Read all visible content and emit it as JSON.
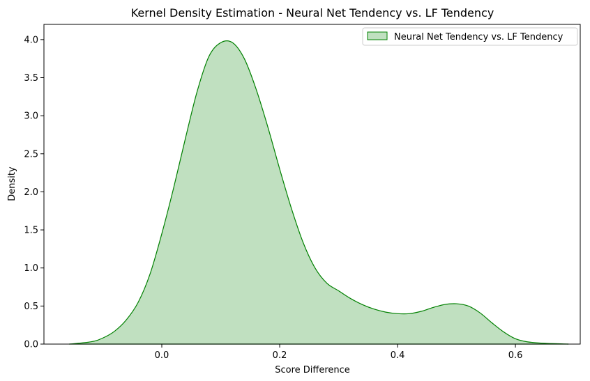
{
  "chart_data": {
    "type": "area",
    "title": "Kernel Density Estimation - Neural Net Tendency vs. LF Tendency",
    "xlabel": "Score Difference",
    "ylabel": "Density",
    "xlim": [
      -0.2,
      0.71
    ],
    "ylim": [
      0,
      4.2
    ],
    "xticks": [
      0.0,
      0.2,
      0.4,
      0.6
    ],
    "xtick_labels": [
      "0.0",
      "0.2",
      "0.4",
      "0.6"
    ],
    "yticks": [
      0.0,
      0.5,
      1.0,
      1.5,
      2.0,
      2.5,
      3.0,
      3.5,
      4.0
    ],
    "ytick_labels": [
      "0.0",
      "0.5",
      "1.0",
      "1.5",
      "2.0",
      "2.5",
      "3.0",
      "3.5",
      "4.0"
    ],
    "grid": false,
    "legend_position": "top-right",
    "series": [
      {
        "name": "Neural Net Tendency vs. LF Tendency",
        "color": "#008000",
        "fill": "#c0e0c0",
        "x": [
          -0.157,
          -0.12,
          -0.1,
          -0.08,
          -0.06,
          -0.04,
          -0.02,
          0.0,
          0.02,
          0.04,
          0.06,
          0.08,
          0.1,
          0.12,
          0.14,
          0.16,
          0.18,
          0.2,
          0.22,
          0.24,
          0.26,
          0.28,
          0.3,
          0.32,
          0.34,
          0.36,
          0.38,
          0.4,
          0.42,
          0.44,
          0.46,
          0.48,
          0.5,
          0.52,
          0.54,
          0.56,
          0.58,
          0.6,
          0.62,
          0.65,
          0.69
        ],
        "y": [
          0.0,
          0.03,
          0.08,
          0.17,
          0.32,
          0.55,
          0.92,
          1.45,
          2.05,
          2.7,
          3.32,
          3.78,
          3.96,
          3.96,
          3.75,
          3.35,
          2.85,
          2.3,
          1.78,
          1.33,
          1.0,
          0.8,
          0.7,
          0.6,
          0.52,
          0.46,
          0.42,
          0.4,
          0.4,
          0.43,
          0.48,
          0.52,
          0.53,
          0.5,
          0.41,
          0.28,
          0.16,
          0.07,
          0.03,
          0.01,
          0.0
        ]
      }
    ]
  }
}
